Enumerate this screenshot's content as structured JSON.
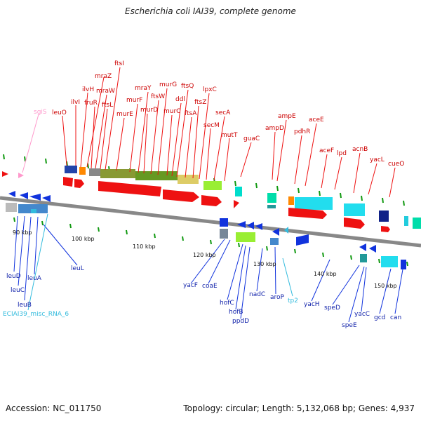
{
  "title": "Escherichia coli IAI39, complete genome",
  "footer": {
    "accession": "Accession: NC_011750",
    "summary": "Topology: circular; Length: 5,132,068 bp; Genes: 4,937"
  },
  "colors": {
    "cds": "#ee1111",
    "rna": "#ff99cc",
    "misc_rna": "#33bbdd",
    "lower_gene": "#1133dd",
    "backbone": "#888888"
  },
  "ticks": [
    "90 kbp",
    "100 kbp",
    "110 kbp",
    "120 kbp",
    "130 kbp",
    "140 kbp",
    "150 kbp"
  ],
  "upper_labels": [
    "sgiS",
    "leuO",
    "ilvI",
    "ilvH",
    "mraZ",
    "mraW",
    "fruR",
    "ftsL",
    "ftsI",
    "murE",
    "murF",
    "mraY",
    "murD",
    "ftsW",
    "murG",
    "murC",
    "ddl",
    "ftsQ",
    "ftsA",
    "ftsZ",
    "lpxC",
    "secM",
    "secA",
    "mutT",
    "guaC",
    "ampD",
    "ampE",
    "pdhR",
    "aceE",
    "aceF",
    "lpd",
    "acnB",
    "yacL",
    "cueO"
  ],
  "lower_labels": [
    "leuD",
    "leuC",
    "leuB",
    "leuA",
    "ECIAI39_misc_RNA_6",
    "leuL",
    "yacF",
    "coaE",
    "hofC",
    "hofB",
    "ppdD",
    "nadC",
    "aroP",
    "tp2",
    "yacH",
    "speD",
    "speE",
    "yacC",
    "gcd",
    "can"
  ]
}
